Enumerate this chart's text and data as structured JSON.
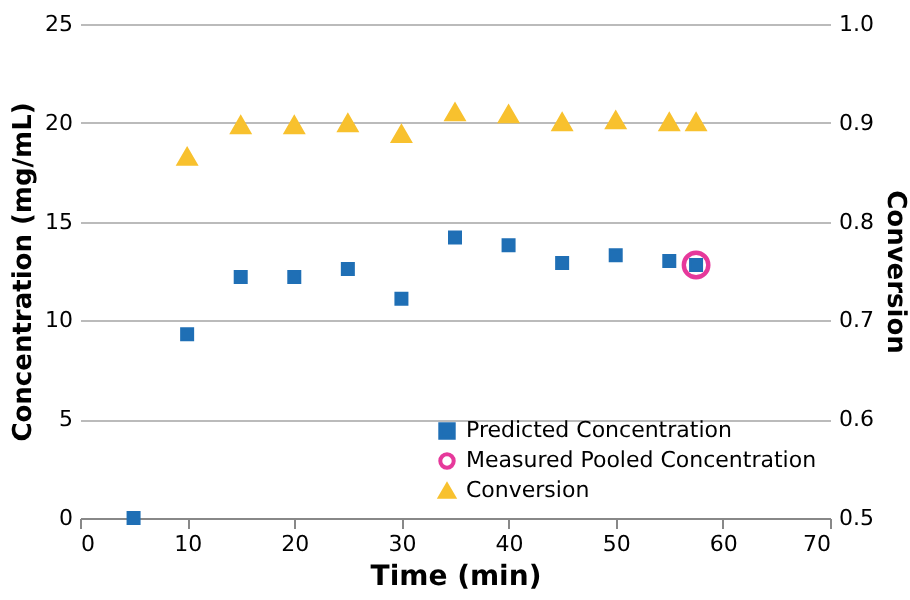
{
  "chart_data": {
    "type": "scatter",
    "xlabel": "Time (min)",
    "ylabel": "Concentration (mg/mL)",
    "y2label": "Conversion",
    "xlim": [
      0,
      70
    ],
    "xticks": [
      0,
      10,
      20,
      30,
      40,
      50,
      60,
      70
    ],
    "ylim": [
      0,
      25
    ],
    "yticks": [
      0,
      5,
      10,
      15,
      20,
      25
    ],
    "y2lim": [
      0.5,
      1.0
    ],
    "y2ticks": [
      0.5,
      0.6,
      0.7,
      0.8,
      0.9,
      {
        "value": 1.0,
        "label": "1.0"
      }
    ],
    "grid": "y",
    "legend": "bottom right",
    "series": [
      {
        "name": "Predicted Concentration",
        "color": "#1f6fb5",
        "marker": "square",
        "x": [
          5,
          10,
          15,
          20,
          25,
          30,
          35,
          40,
          45,
          50,
          55,
          57.5
        ],
        "values": [
          0,
          9.3,
          12.2,
          12.2,
          12.6,
          11.1,
          14.2,
          13.8,
          12.9,
          13.3,
          13,
          12.8
        ]
      },
      {
        "name": "Measured Pooled Concentration",
        "color": "#e6399b",
        "marker": "circle",
        "x": [
          57.5
        ],
        "values": [
          12.8
        ]
      },
      {
        "name": "Conversion",
        "color": "#f8c12e",
        "marker": "triangle",
        "axis": "y2",
        "x": [
          10,
          15,
          20,
          25,
          30,
          35,
          40,
          45,
          50,
          55,
          57.5
        ],
        "values": [
          0.866,
          0.898,
          0.898,
          0.9,
          0.889,
          0.911,
          0.909,
          0.901,
          0.903,
          0.901,
          0.901
        ]
      }
    ]
  }
}
